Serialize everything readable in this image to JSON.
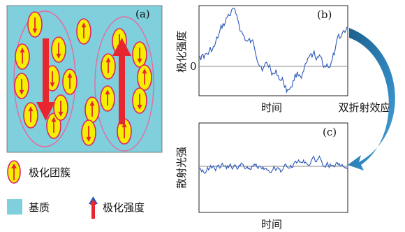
{
  "panel_a": {
    "tag": "(a)"
  },
  "panel_b": {
    "tag": "(b)",
    "ylabel": "极化强度",
    "xlabel": "时间",
    "zero_label": "0"
  },
  "panel_c": {
    "tag": "(c)",
    "ylabel": "散射光强",
    "xlabel": "时间"
  },
  "arrow_label": "双折射效应",
  "legend": {
    "cluster": "极化团簇",
    "matrix": "基质",
    "polarization": "极化强度"
  },
  "colors": {
    "matrix": "#7fcfdc",
    "cluster_fill": "#f4ef00",
    "cluster_stroke": "#e0206a",
    "arrow_red": "#e8262f",
    "signal": "#2a57b8",
    "group_ellipse": "#e86aa0",
    "curved_arrow": "#2f7fb6"
  }
}
